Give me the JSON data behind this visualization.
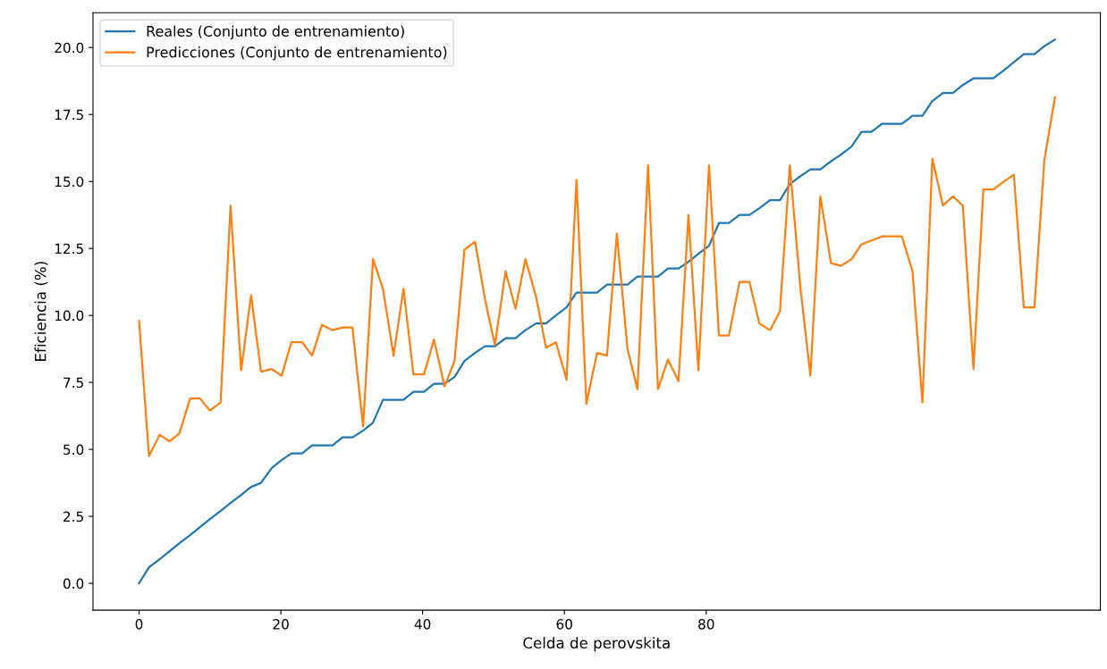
{
  "chart_data": {
    "type": "line",
    "xlabel": "Celda de perovskita",
    "ylabel": "Eficiencia (%)",
    "x": [
      0,
      1.4,
      2.9,
      4.3,
      5.7,
      7.2,
      8.6,
      10.0,
      11.5,
      12.9,
      14.4,
      15.8,
      17.2,
      18.7,
      20.1,
      21.5,
      23.0,
      24.4,
      25.8,
      27.3,
      28.7,
      30.1,
      31.6,
      33.0,
      34.4,
      35.9,
      37.3,
      38.7,
      40.2,
      41.6,
      43.1,
      44.5,
      45.9,
      47.4,
      48.8,
      50.2,
      51.7,
      53.1,
      54.5,
      56.0,
      57.4,
      58.8,
      60.3,
      61.7,
      63.1,
      64.6,
      66.0,
      67.4,
      68.9,
      70.3,
      71.8,
      73.2,
      74.6,
      76.1,
      77.5,
      78.9,
      80.4,
      81.8,
      83.2,
      84.7,
      86.1,
      87.5,
      89.0,
      90.4,
      91.8,
      93.3,
      94.7,
      96.1,
      97.6,
      99.0,
      100.5,
      101.9,
      103.3,
      104.8,
      106.2,
      107.6,
      109.1,
      110.5,
      111.9,
      113.4,
      114.8,
      116.2,
      117.7,
      119.1,
      120.5,
      122.0,
      123.4,
      124.8,
      126.3,
      127.7,
      129.2
    ],
    "series": [
      {
        "name": "Reales (Conjunto de entrenamiento)",
        "color": "#1f77b4",
        "values": [
          0,
          0.6,
          0.9,
          1.2,
          1.5,
          1.8,
          2.1,
          2.4,
          2.7,
          3.0,
          3.3,
          3.6,
          3.75,
          4.3,
          4.6,
          4.85,
          4.85,
          5.15,
          5.15,
          5.15,
          5.45,
          5.45,
          5.7,
          6.0,
          6.85,
          6.85,
          6.85,
          7.15,
          7.15,
          7.45,
          7.45,
          7.7,
          8.3,
          8.6,
          8.85,
          8.85,
          9.15,
          9.15,
          9.45,
          9.7,
          9.7,
          10.0,
          10.3,
          10.85,
          10.85,
          10.85,
          11.15,
          11.15,
          11.15,
          11.45,
          11.45,
          11.45,
          11.75,
          11.75,
          12.0,
          12.3,
          12.6,
          13.45,
          13.45,
          13.75,
          13.75,
          14.0,
          14.3,
          14.3,
          14.9,
          15.2,
          15.45,
          15.45,
          15.75,
          16.0,
          16.3,
          16.85,
          16.85,
          17.15,
          17.15,
          17.15,
          17.45,
          17.45,
          18.0,
          18.3,
          18.3,
          18.6,
          18.85,
          18.85,
          18.85,
          19.15,
          19.45,
          19.75,
          19.75,
          20.05,
          20.3
        ]
      },
      {
        "name": "Predicciones (Conjunto de entrenamiento)",
        "color": "#ff7f0e",
        "values": [
          9.8,
          4.75,
          5.55,
          5.3,
          5.6,
          6.9,
          6.9,
          6.45,
          6.75,
          14.1,
          7.95,
          10.75,
          7.9,
          8.0,
          7.75,
          9.0,
          9.0,
          8.5,
          9.65,
          9.45,
          9.55,
          9.55,
          5.85,
          12.1,
          11.0,
          8.5,
          11.0,
          7.8,
          7.8,
          9.1,
          7.35,
          8.3,
          12.45,
          12.75,
          10.6,
          8.9,
          11.65,
          10.25,
          12.1,
          10.7,
          8.8,
          9.0,
          7.6,
          15.05,
          6.7,
          8.6,
          8.5,
          13.05,
          8.75,
          7.25,
          15.6,
          7.25,
          8.35,
          7.55,
          13.75,
          7.95,
          15.6,
          9.25,
          9.25,
          11.25,
          11.25,
          9.7,
          9.45,
          10.15,
          15.6,
          11.0,
          7.75,
          14.45,
          11.95,
          11.85,
          12.1,
          12.65,
          12.8,
          12.95,
          12.95,
          12.95,
          11.65,
          6.75,
          15.85,
          14.1,
          14.45,
          14.1,
          8.0,
          14.7,
          14.7,
          15.0,
          15.25,
          10.3,
          10.3,
          15.8,
          18.15
        ]
      }
    ],
    "xlim": [
      -6.5,
      135.6
    ],
    "xticks": [
      0,
      20,
      40,
      60,
      80
    ],
    "ylim": [
      -1.0,
      21.3
    ],
    "yticks": [
      {
        "value": 0,
        "label": "0.0"
      },
      {
        "value": 2.5,
        "label": "2.5"
      },
      {
        "value": 5,
        "label": "5.0"
      },
      {
        "value": 7.5,
        "label": "7.5"
      },
      {
        "value": 10,
        "label": "10.0"
      },
      {
        "value": 12.5,
        "label": "12.5"
      },
      {
        "value": 15,
        "label": "15.0"
      },
      {
        "value": 17.5,
        "label": "17.5"
      },
      {
        "value": 20,
        "label": "20.0"
      }
    ],
    "legend": "top left",
    "grid": false,
    "marker": "none",
    "line_style": "solid"
  }
}
